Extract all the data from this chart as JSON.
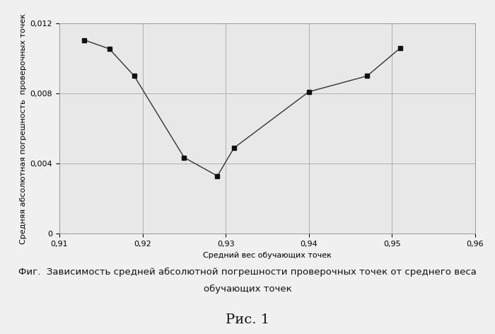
{
  "x": [
    0.913,
    0.916,
    0.919,
    0.925,
    0.929,
    0.931,
    0.94,
    0.947,
    0.951
  ],
  "y": [
    0.01105,
    0.01055,
    0.009,
    0.00435,
    0.0033,
    0.0049,
    0.0081,
    0.009,
    0.0106
  ],
  "line_color": "#333333",
  "marker_color": "#111111",
  "marker_size": 4,
  "line_width": 1.0,
  "xlim": [
    0.91,
    0.96
  ],
  "ylim": [
    0,
    0.012
  ],
  "xticks": [
    0.91,
    0.92,
    0.93,
    0.94,
    0.95,
    0.96
  ],
  "yticks": [
    0,
    0.004,
    0.008,
    0.012
  ],
  "ytick_labels": [
    "0",
    "0,004",
    "0,008",
    "0,012"
  ],
  "xtick_labels": [
    "0,91",
    "0,92",
    "0,93",
    "0,94",
    "0,95",
    "0,96"
  ],
  "xlabel": "Средний вес обучающих точек",
  "ylabel": "Средняя абсолютная погрешность  проверочных точек",
  "caption_line1": "Фиг.  Зависимость средней абсолютной погрешности проверочных точек от среднего веса",
  "caption_line2": "обучающих точек",
  "ris_label": "Рис. 1",
  "bg_color": "#f0f0f0",
  "plot_bg_color": "#e8e8e8",
  "grid_color": "#b0b0b0",
  "caption_fontsize": 9.5,
  "axis_label_fontsize": 8,
  "tick_fontsize": 8,
  "ris_fontsize": 14
}
